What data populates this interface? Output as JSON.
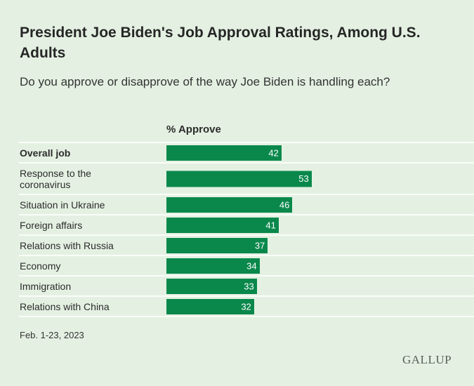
{
  "chart_data": {
    "type": "bar",
    "orientation": "horizontal",
    "title": "President Joe Biden's Job Approval Ratings, Among U.S. Adults",
    "subtitle": "Do you approve or disapprove of the way Joe Biden is handling each?",
    "column_header": "% Approve",
    "categories": [
      "Overall job",
      "Response to the coronavirus",
      "Situation in Ukraine",
      "Foreign affairs",
      "Relations with Russia",
      "Economy",
      "Immigration",
      "Relations with China"
    ],
    "values": [
      42,
      53,
      46,
      41,
      37,
      34,
      33,
      32
    ],
    "xlim": [
      0,
      100
    ],
    "grid": false,
    "bar_color": "#0a884c",
    "background_color": "#e4f1e2",
    "note": "Feb. 1-23, 2023",
    "source_logo": "GALLUP"
  }
}
